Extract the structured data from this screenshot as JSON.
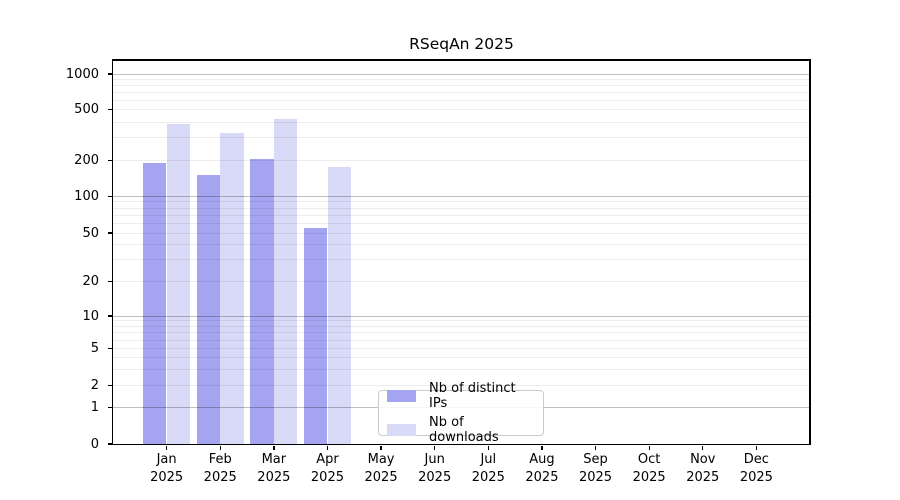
{
  "chart_data": {
    "type": "bar",
    "title": "RSeqAn 2025",
    "xlabel": "",
    "ylabel": "",
    "scale": "symlog",
    "grid": true,
    "categories": [
      [
        "Jan",
        "2025"
      ],
      [
        "Feb",
        "2025"
      ],
      [
        "Mar",
        "2025"
      ],
      [
        "Apr",
        "2025"
      ],
      [
        "May",
        "2025"
      ],
      [
        "Jun",
        "2025"
      ],
      [
        "Jul",
        "2025"
      ],
      [
        "Aug",
        "2025"
      ],
      [
        "Sep",
        "2025"
      ],
      [
        "Oct",
        "2025"
      ],
      [
        "Nov",
        "2025"
      ],
      [
        "Dec",
        "2025"
      ]
    ],
    "series": [
      {
        "name": "Nb of distinct IPs",
        "color": "#a4a4f1",
        "values": [
          190,
          150,
          205,
          55,
          null,
          null,
          null,
          null,
          null,
          null,
          null,
          null
        ]
      },
      {
        "name": "Nb of downloads",
        "color": "#d9d9f8",
        "values": [
          385,
          330,
          420,
          175,
          null,
          null,
          null,
          null,
          null,
          null,
          null,
          null
        ]
      }
    ],
    "y_ticks": [
      0,
      1,
      2,
      5,
      10,
      20,
      50,
      100,
      200,
      500,
      1000
    ],
    "y_major_gridlines": [
      1,
      10,
      100,
      1000
    ],
    "y_minor_gridlines": [
      3,
      4,
      6,
      7,
      8,
      9,
      30,
      40,
      60,
      70,
      80,
      90,
      300,
      400,
      600,
      700,
      800,
      900
    ],
    "ylim": [
      0,
      1000
    ],
    "legend": {
      "position": "lower center",
      "entries": [
        "Nb of distinct IPs",
        "Nb of downloads"
      ]
    }
  },
  "colors": {
    "axis": "#000000",
    "grid_major": "#c2c2c2",
    "grid_minor": "#efefef",
    "background": "#ffffff",
    "legend_border": "#cbcbcb"
  }
}
